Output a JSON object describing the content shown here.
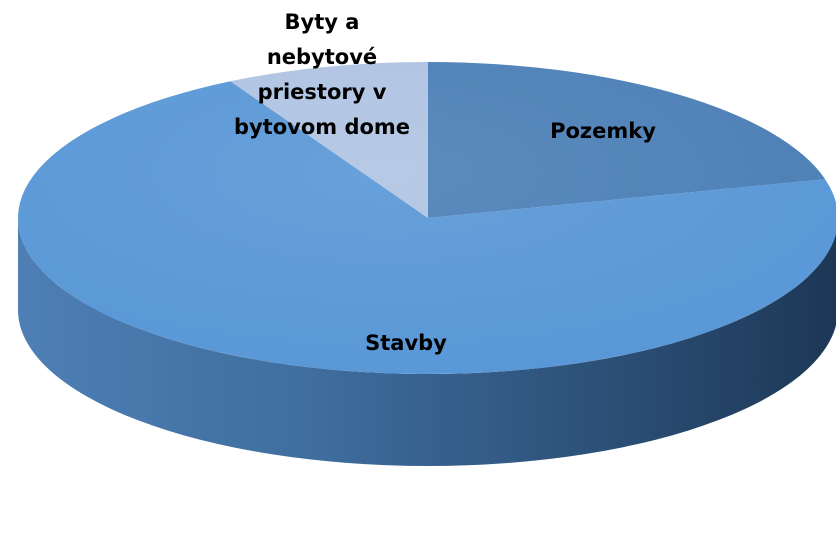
{
  "chart_data": {
    "type": "pie",
    "style": "3d",
    "start": "top",
    "direction": "clockwise",
    "legend": "none",
    "slices": [
      {
        "label": "Pozemky",
        "value": 21,
        "color": "#4A7EB6"
      },
      {
        "label": "Stavby",
        "value": 71,
        "color": "#5796D6"
      },
      {
        "label": "Byty a nebytové priestory v bytovom dome",
        "value": 8,
        "color": "#AEC3E2"
      }
    ]
  }
}
